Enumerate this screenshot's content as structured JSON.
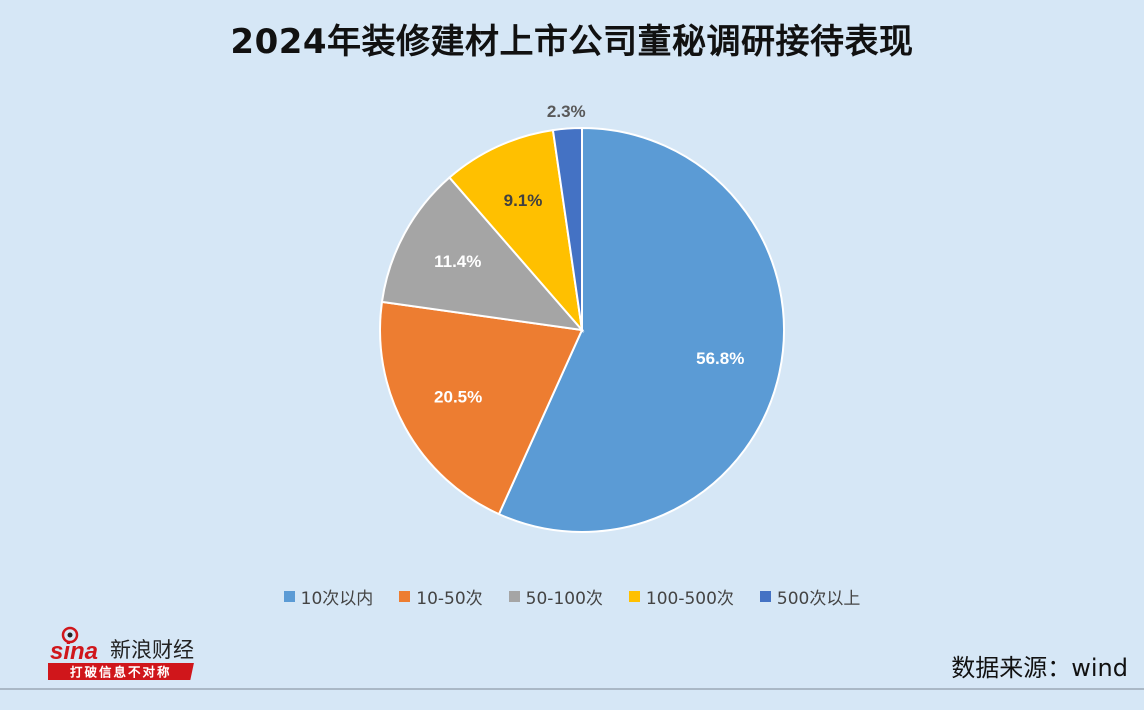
{
  "title": "2024年装修建材上市公司董秘调研接待表现",
  "source": "数据来源：wind",
  "logo": {
    "brand": "sina",
    "name": "新浪财经",
    "slogan": "打破信息不对称"
  },
  "chart_data": {
    "type": "pie",
    "categories": [
      "10次以内",
      "10-50次",
      "50-100次",
      "100-500次",
      "500次以上"
    ],
    "values": [
      56.8,
      20.5,
      11.4,
      9.1,
      2.3
    ],
    "labels": [
      "56.8%",
      "20.5%",
      "11.4%",
      "9.1%",
      "2.3%"
    ],
    "colors": [
      "#5b9bd5",
      "#ed7d31",
      "#a5a5a5",
      "#ffc000",
      "#4472c4"
    ],
    "label_colors": [
      "#ffffff",
      "#ffffff",
      "#ffffff",
      "#404040",
      "#595959"
    ],
    "legend_position": "bottom"
  }
}
